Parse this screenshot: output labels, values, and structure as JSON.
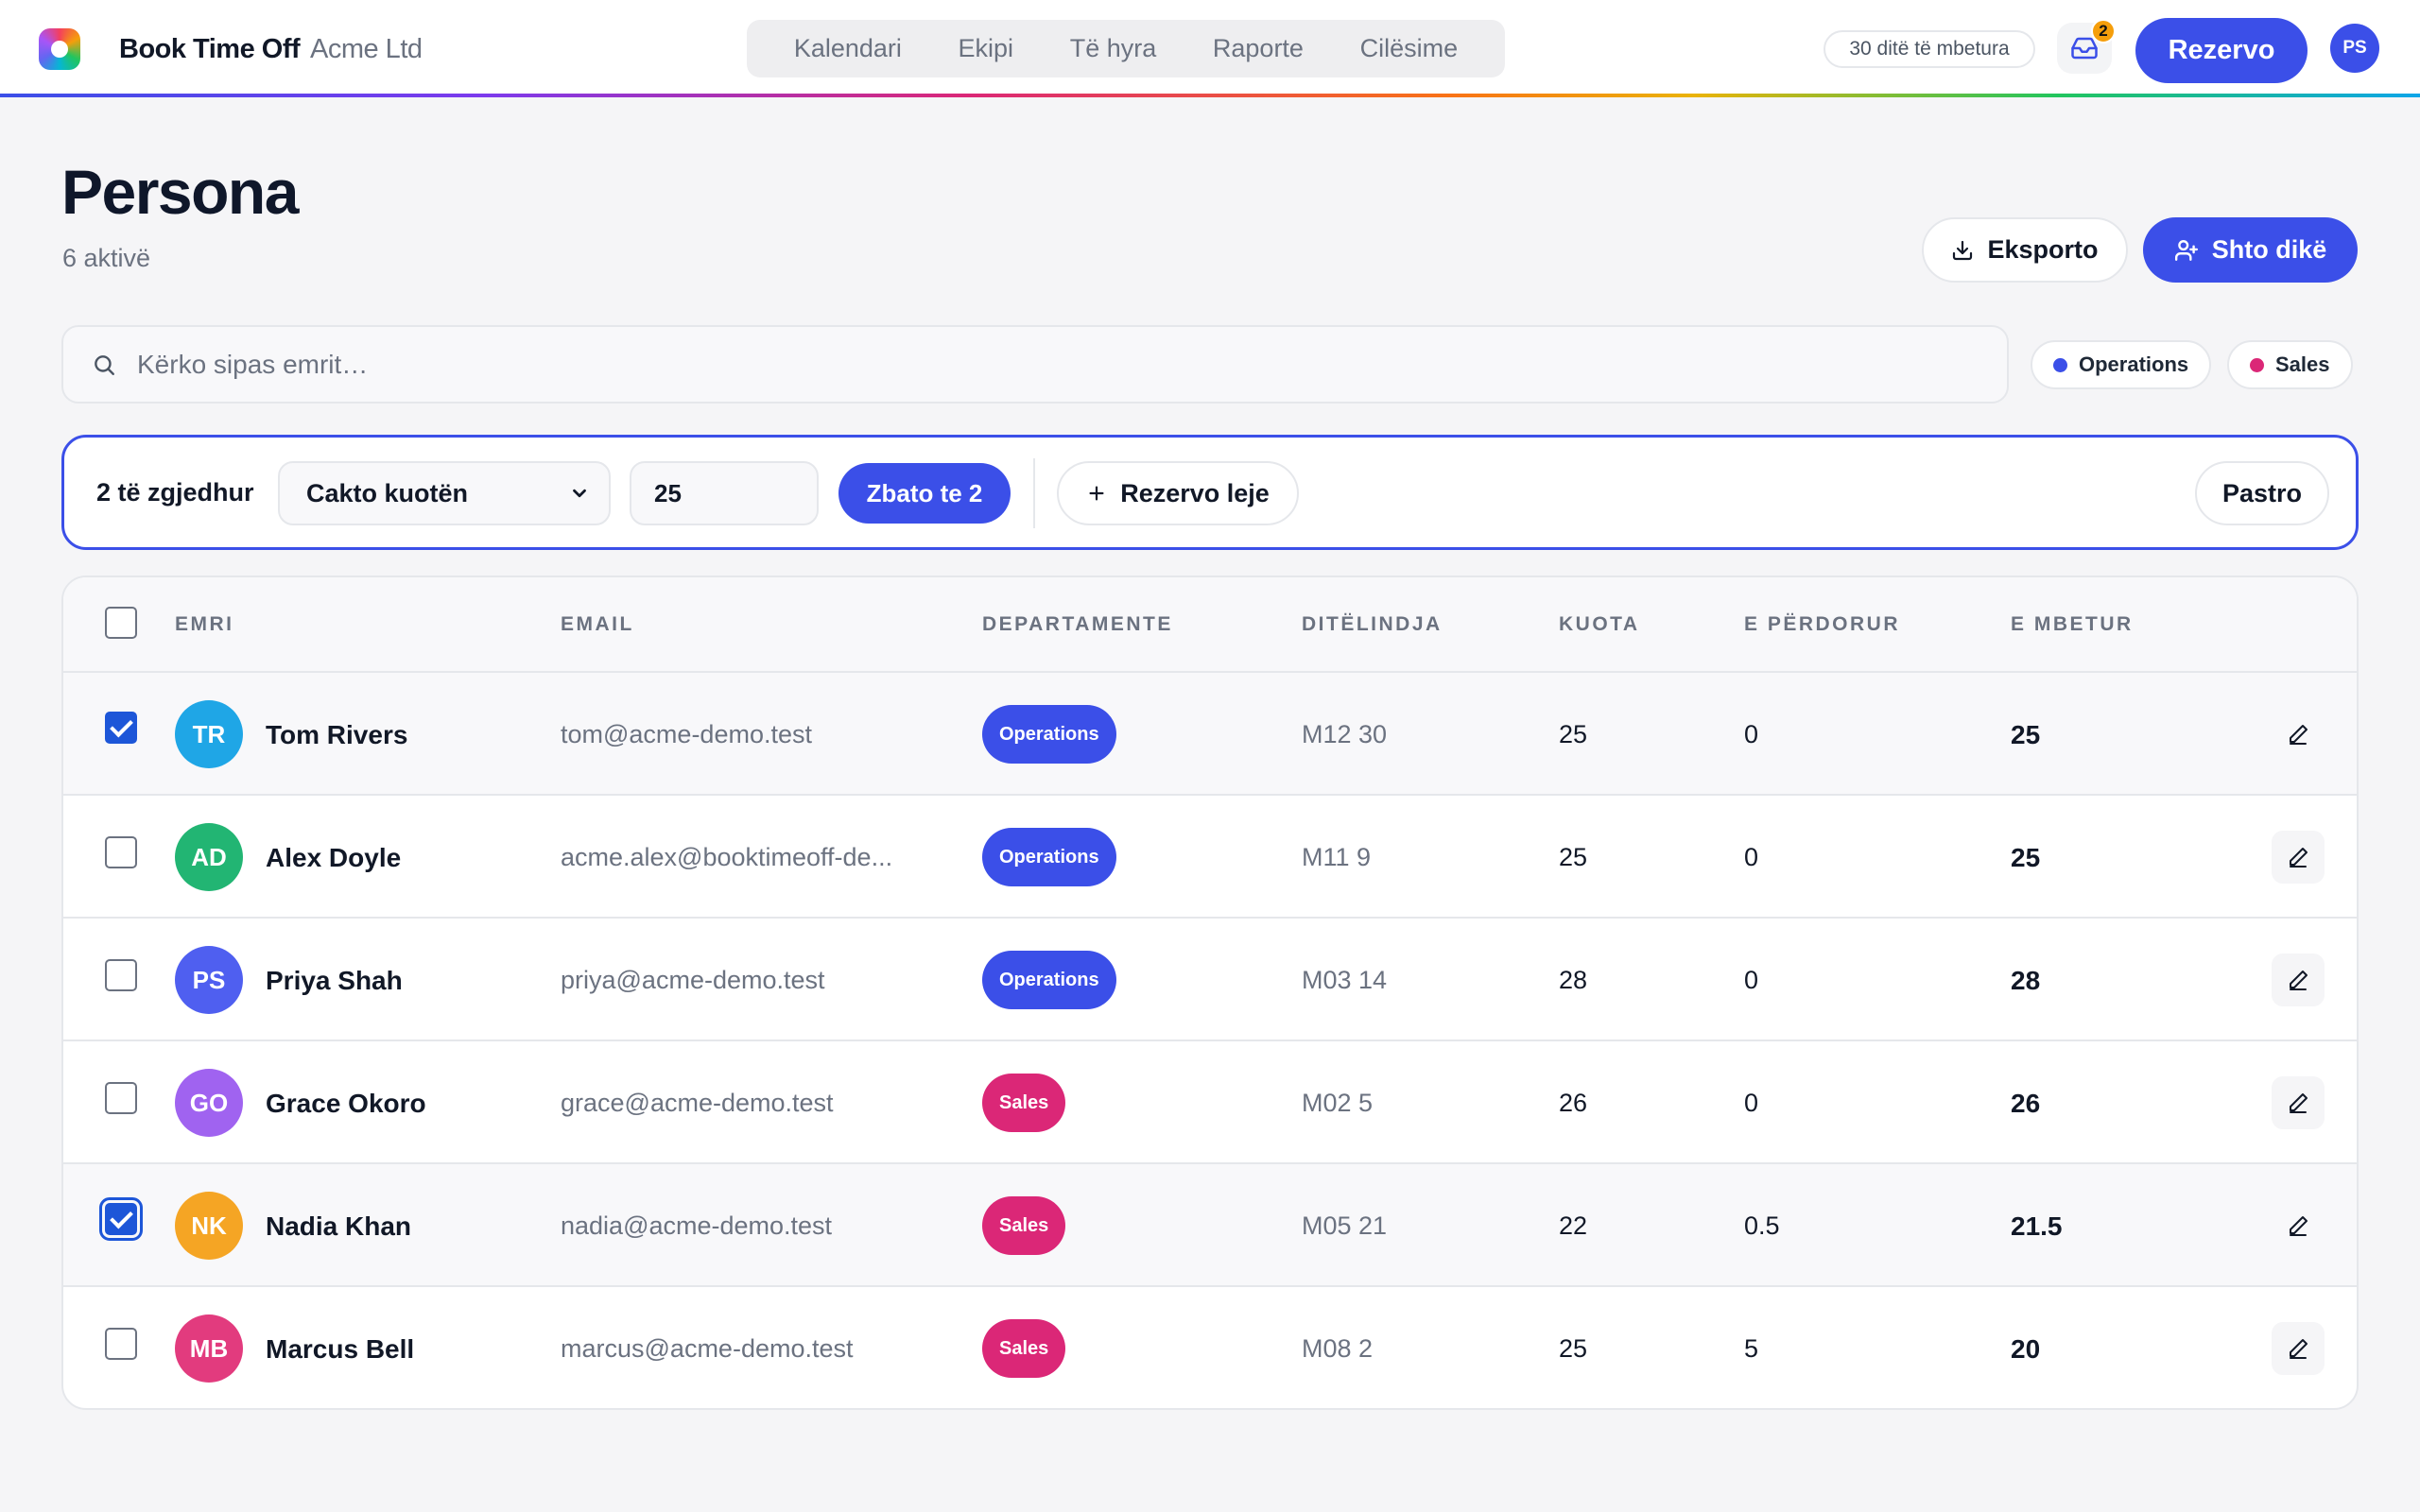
{
  "app": {
    "brand": "Book Time Off",
    "org": "Acme Ltd",
    "nav": [
      "Kalendari",
      "Ekipi",
      "Të hyra",
      "Raporte",
      "Cilësime"
    ],
    "days_left": "30 ditë të mbetura",
    "inbox_count": "2",
    "book_label": "Rezervo",
    "user_initials": "PS"
  },
  "page": {
    "title": "Persona",
    "subtitle": "6 aktivë",
    "export_label": "Eksporto",
    "add_label": "Shto dikë"
  },
  "search": {
    "placeholder": "Kërko sipas emrit…"
  },
  "filters": [
    {
      "label": "Operations",
      "color": "#3b4fe8"
    },
    {
      "label": "Sales",
      "color": "#db2777"
    }
  ],
  "bulk": {
    "count_label": "2 të zgjedhur",
    "select_value": "Cakto kuotën",
    "qty_value": "25",
    "apply_label": "Zbato te 2",
    "book_label": "Rezervo leje",
    "clear_label": "Pastro"
  },
  "table": {
    "headers": {
      "name": "EMRI",
      "email": "EMAIL",
      "dept": "DEPARTAMENTE",
      "bday": "DITËLINDJA",
      "quota": "KUOTA",
      "used": "E PËRDORUR",
      "left": "E MBETUR"
    },
    "rows": [
      {
        "initials": "TR",
        "avatar_color": "#1fa6e6",
        "name": "Tom Rivers",
        "email": "tom@acme-demo.test",
        "dept": "Operations",
        "dept_color": "#3b4fe8",
        "bday": "M12 30",
        "quota": "25",
        "used": "0",
        "left": "25",
        "checked": true
      },
      {
        "initials": "AD",
        "avatar_color": "#22b573",
        "name": "Alex Doyle",
        "email": "acme.alex@booktimeoff-de...",
        "dept": "Operations",
        "dept_color": "#3b4fe8",
        "bday": "M11 9",
        "quota": "25",
        "used": "0",
        "left": "25",
        "checked": false
      },
      {
        "initials": "PS",
        "avatar_color": "#4f5ff0",
        "name": "Priya Shah",
        "email": "priya@acme-demo.test",
        "dept": "Operations",
        "dept_color": "#3b4fe8",
        "bday": "M03 14",
        "quota": "28",
        "used": "0",
        "left": "28",
        "checked": false
      },
      {
        "initials": "GO",
        "avatar_color": "#a063f0",
        "name": "Grace Okoro",
        "email": "grace@acme-demo.test",
        "dept": "Sales",
        "dept_color": "#db2777",
        "bday": "M02 5",
        "quota": "26",
        "used": "0",
        "left": "26",
        "checked": false
      },
      {
        "initials": "NK",
        "avatar_color": "#f5a524",
        "name": "Nadia Khan",
        "email": "nadia@acme-demo.test",
        "dept": "Sales",
        "dept_color": "#db2777",
        "bday": "M05 21",
        "quota": "22",
        "used": "0.5",
        "left": "21.5",
        "checked": true
      },
      {
        "initials": "MB",
        "avatar_color": "#e23b7e",
        "name": "Marcus Bell",
        "email": "marcus@acme-demo.test",
        "dept": "Sales",
        "dept_color": "#db2777",
        "bday": "M08 2",
        "quota": "25",
        "used": "5",
        "left": "20",
        "checked": false
      }
    ]
  }
}
